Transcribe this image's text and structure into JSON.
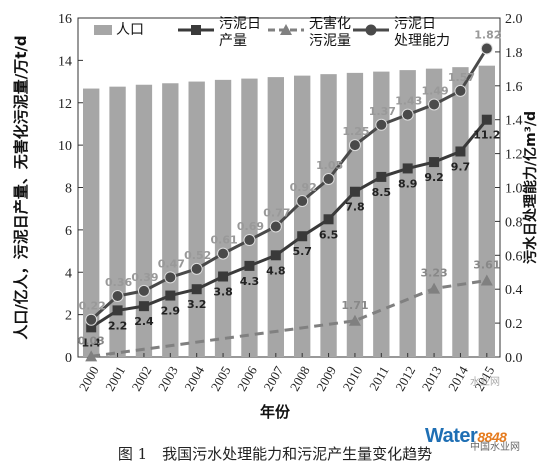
{
  "chart_data": {
    "type": "bar",
    "categories": [
      "2000",
      "2001",
      "2002",
      "2003",
      "2004",
      "2005",
      "2006",
      "2007",
      "2008",
      "2009",
      "2010",
      "2011",
      "2012",
      "2013",
      "2014",
      "2015"
    ],
    "xlabel": "年份",
    "ylabel_left": "人口/亿人，污泥日产量、无害化污泥量/万t/d",
    "ylabel_right": "污水日处理能力/亿m³/d",
    "ylim_left": [
      0,
      16
    ],
    "yticks_left": [
      0,
      2,
      4,
      6,
      8,
      10,
      12,
      14,
      16
    ],
    "ylim_right": [
      0,
      2.0
    ],
    "yticks_right": [
      "0.0",
      "0.2",
      "0.4",
      "0.6",
      "0.8",
      "1.0",
      "1.2",
      "1.4",
      "1.6",
      "1.8",
      "2.0"
    ],
    "legend_position": "top",
    "series": [
      {
        "name": "人口",
        "type": "bar",
        "axis": "left",
        "color": "#a6a6a6",
        "values": [
          12.67,
          12.76,
          12.85,
          12.92,
          13.0,
          13.08,
          13.14,
          13.21,
          13.28,
          13.35,
          13.41,
          13.47,
          13.54,
          13.61,
          13.68,
          13.75
        ]
      },
      {
        "name": "污泥日产量",
        "type": "line",
        "axis": "left",
        "marker": "square",
        "color": "#3a3a3a",
        "values": [
          1.4,
          2.2,
          2.4,
          2.9,
          3.2,
          3.8,
          4.3,
          4.8,
          5.7,
          6.5,
          7.8,
          8.5,
          8.9,
          9.2,
          9.7,
          11.2
        ],
        "labels": [
          "1.4",
          "2.2",
          "2.4",
          "2.9",
          "3.2",
          "3.8",
          "4.3",
          "4.8",
          "5.7",
          "6.5",
          "7.8",
          "8.5",
          "8.9",
          "9.2",
          "9.7",
          "11.2"
        ]
      },
      {
        "name": "无害化污泥量",
        "type": "line",
        "axis": "left",
        "marker": "triangle",
        "dashed": true,
        "color": "#808080",
        "x": [
          "2000",
          "2010",
          "2013",
          "2015"
        ],
        "values": [
          0.03,
          1.71,
          3.23,
          3.61
        ],
        "labels": [
          "0.03",
          "1.71",
          "3.23",
          "3.61"
        ]
      },
      {
        "name": "污泥日处理能力",
        "type": "line",
        "axis": "right",
        "marker": "circle",
        "color": "#4a4a4a",
        "values": [
          0.22,
          0.36,
          0.39,
          0.47,
          0.52,
          0.61,
          0.69,
          0.77,
          0.92,
          1.05,
          1.25,
          1.37,
          1.43,
          1.49,
          1.57,
          1.82
        ],
        "labels": [
          "0.22",
          "0.36",
          "0.39",
          "0.47",
          "0.52",
          "0.61",
          "0.69",
          "0.77",
          "0.92",
          "1.05",
          "1.25",
          "1.37",
          "1.43",
          "1.49",
          "1.57",
          "1.82"
        ]
      }
    ]
  },
  "caption": "图 1　我国污水处理能力和污泥产生量变化趋势",
  "watermark": {
    "brand": "Water",
    "number": "8848",
    "sub": "中国水业网",
    "overlay": "水业网"
  }
}
